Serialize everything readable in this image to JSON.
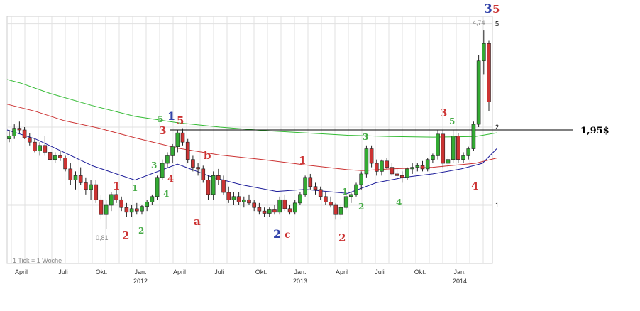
{
  "chart_data": {
    "type": "candlestick",
    "footnote": "1 Tick = 1 Woche",
    "x_ticks": [
      "April",
      "Juli",
      "Okt.",
      "Jan.",
      "April",
      "Juli",
      "Okt.",
      "Jan.",
      "April",
      "Juli",
      "Okt.",
      "Jan."
    ],
    "year_labels": [
      "2012",
      "2013",
      "2014"
    ],
    "y_axis": {
      "scale": "log",
      "ticks": [
        "1",
        "2",
        "5"
      ]
    },
    "annotations": {
      "high": "4,74",
      "low": "0,81",
      "resistance_label": "1,95$",
      "resistance_value": 1.95
    },
    "wave_labels": [
      {
        "text": "1",
        "color": "#cc3333"
      },
      {
        "text": "2",
        "color": "#cc3333"
      },
      {
        "text": "1",
        "color": "#44aa44"
      },
      {
        "text": "2",
        "color": "#44aa44"
      },
      {
        "text": "3",
        "color": "#44aa44"
      },
      {
        "text": "4",
        "color": "#44aa44"
      },
      {
        "text": "5",
        "color": "#44aa44"
      },
      {
        "text": "3",
        "color": "#cc3333"
      },
      {
        "text": "4",
        "color": "#cc3333"
      },
      {
        "text": "1",
        "color": "#3344aa"
      },
      {
        "text": "5",
        "color": "#cc3333"
      },
      {
        "text": "a",
        "color": "#cc3333"
      },
      {
        "text": "b",
        "color": "#cc3333"
      },
      {
        "text": "2",
        "color": "#3344aa"
      },
      {
        "text": "c",
        "color": "#cc3333"
      },
      {
        "text": "1",
        "color": "#cc3333"
      },
      {
        "text": "2",
        "color": "#cc3333"
      },
      {
        "text": "1",
        "color": "#44aa44"
      },
      {
        "text": "2",
        "color": "#44aa44"
      },
      {
        "text": "3",
        "color": "#44aa44"
      },
      {
        "text": "4",
        "color": "#44aa44"
      },
      {
        "text": "5",
        "color": "#44aa44"
      },
      {
        "text": "3",
        "color": "#cc3333"
      },
      {
        "text": "4",
        "color": "#cc3333"
      },
      {
        "text": "3",
        "color": "#3344aa"
      },
      {
        "text": "5",
        "color": "#cc3333"
      }
    ],
    "series": [
      {
        "kind": "moving-average",
        "color": "#33bb33",
        "values": [
          [
            0,
            3.05
          ],
          [
            20,
            2.95
          ],
          [
            60,
            2.7
          ],
          [
            120,
            2.42
          ],
          [
            180,
            2.2
          ],
          [
            240,
            2.08
          ],
          [
            300,
            2.0
          ],
          [
            360,
            1.94
          ],
          [
            420,
            1.9
          ],
          [
            480,
            1.86
          ],
          [
            540,
            1.84
          ],
          [
            600,
            1.83
          ],
          [
            660,
            1.84
          ],
          [
            690,
            1.9
          ]
        ]
      },
      {
        "kind": "moving-average",
        "color": "#cc3333",
        "values": [
          [
            0,
            2.45
          ],
          [
            40,
            2.3
          ],
          [
            80,
            2.12
          ],
          [
            130,
            1.98
          ],
          [
            180,
            1.82
          ],
          [
            240,
            1.66
          ],
          [
            300,
            1.56
          ],
          [
            360,
            1.5
          ],
          [
            420,
            1.43
          ],
          [
            480,
            1.37
          ],
          [
            500,
            1.36
          ],
          [
            540,
            1.38
          ],
          [
            600,
            1.4
          ],
          [
            660,
            1.45
          ],
          [
            690,
            1.52
          ]
        ]
      },
      {
        "kind": "moving-average",
        "color": "#1c1c99",
        "values": [
          [
            0,
            1.95
          ],
          [
            40,
            1.8
          ],
          [
            80,
            1.6
          ],
          [
            120,
            1.42
          ],
          [
            180,
            1.25
          ],
          [
            240,
            1.44
          ],
          [
            290,
            1.28
          ],
          [
            330,
            1.2
          ],
          [
            380,
            1.13
          ],
          [
            420,
            1.15
          ],
          [
            480,
            1.11
          ],
          [
            520,
            1.22
          ],
          [
            560,
            1.28
          ],
          [
            600,
            1.32
          ],
          [
            640,
            1.38
          ],
          [
            670,
            1.45
          ],
          [
            690,
            1.65
          ]
        ]
      }
    ],
    "candles": [
      [
        1.8,
        1.95,
        1.75,
        1.85
      ],
      [
        1.85,
        2.05,
        1.8,
        1.98
      ],
      [
        1.98,
        2.1,
        1.9,
        1.95
      ],
      [
        1.95,
        2.0,
        1.8,
        1.82
      ],
      [
        1.82,
        1.9,
        1.7,
        1.75
      ],
      [
        1.75,
        1.8,
        1.6,
        1.62
      ],
      [
        1.62,
        1.75,
        1.55,
        1.7
      ],
      [
        1.7,
        1.85,
        1.55,
        1.6
      ],
      [
        1.6,
        1.62,
        1.48,
        1.5
      ],
      [
        1.5,
        1.6,
        1.45,
        1.55
      ],
      [
        1.55,
        1.62,
        1.48,
        1.52
      ],
      [
        1.52,
        1.55,
        1.35,
        1.38
      ],
      [
        1.38,
        1.45,
        1.2,
        1.25
      ],
      [
        1.25,
        1.35,
        1.15,
        1.3
      ],
      [
        1.3,
        1.4,
        1.2,
        1.22
      ],
      [
        1.22,
        1.28,
        1.1,
        1.15
      ],
      [
        1.15,
        1.25,
        1.05,
        1.2
      ],
      [
        1.2,
        1.25,
        1.02,
        1.05
      ],
      [
        1.05,
        1.1,
        0.88,
        0.92
      ],
      [
        0.92,
        1.05,
        0.81,
        1.0
      ],
      [
        1.0,
        1.12,
        0.95,
        1.1
      ],
      [
        1.1,
        1.15,
        1.02,
        1.05
      ],
      [
        1.05,
        1.08,
        0.95,
        0.98
      ],
      [
        0.98,
        1.02,
        0.9,
        0.94
      ],
      [
        0.94,
        1.0,
        0.9,
        0.97
      ],
      [
        0.97,
        1.02,
        0.92,
        0.95
      ],
      [
        0.95,
        1.0,
        0.92,
        0.99
      ],
      [
        0.99,
        1.05,
        0.95,
        1.03
      ],
      [
        1.03,
        1.1,
        1.0,
        1.08
      ],
      [
        1.08,
        1.3,
        1.05,
        1.28
      ],
      [
        1.28,
        1.5,
        1.25,
        1.45
      ],
      [
        1.45,
        1.6,
        1.4,
        1.55
      ],
      [
        1.55,
        1.72,
        1.45,
        1.68
      ],
      [
        1.68,
        1.95,
        1.6,
        1.9
      ],
      [
        1.9,
        1.98,
        1.7,
        1.75
      ],
      [
        1.75,
        1.8,
        1.45,
        1.5
      ],
      [
        1.5,
        1.55,
        1.35,
        1.4
      ],
      [
        1.4,
        1.45,
        1.3,
        1.38
      ],
      [
        1.38,
        1.42,
        1.22,
        1.25
      ],
      [
        1.25,
        1.3,
        1.05,
        1.1
      ],
      [
        1.1,
        1.35,
        1.05,
        1.3
      ],
      [
        1.3,
        1.38,
        1.2,
        1.25
      ],
      [
        1.25,
        1.3,
        1.1,
        1.12
      ],
      [
        1.12,
        1.18,
        1.02,
        1.05
      ],
      [
        1.05,
        1.12,
        1.0,
        1.08
      ],
      [
        1.08,
        1.12,
        1.0,
        1.03
      ],
      [
        1.03,
        1.08,
        0.98,
        1.05
      ],
      [
        1.05,
        1.1,
        1.0,
        1.02
      ],
      [
        1.02,
        1.05,
        0.95,
        0.98
      ],
      [
        0.98,
        1.02,
        0.92,
        0.95
      ],
      [
        0.95,
        0.98,
        0.9,
        0.93
      ],
      [
        0.93,
        0.98,
        0.9,
        0.96
      ],
      [
        0.96,
        1.0,
        0.92,
        0.94
      ],
      [
        0.94,
        1.08,
        0.92,
        1.05
      ],
      [
        1.05,
        1.1,
        0.95,
        0.97
      ],
      [
        0.97,
        1.0,
        0.92,
        0.94
      ],
      [
        0.94,
        1.05,
        0.92,
        1.02
      ],
      [
        1.02,
        1.12,
        1.0,
        1.1
      ],
      [
        1.1,
        1.3,
        1.08,
        1.28
      ],
      [
        1.28,
        1.32,
        1.15,
        1.18
      ],
      [
        1.18,
        1.22,
        1.1,
        1.15
      ],
      [
        1.15,
        1.18,
        1.05,
        1.08
      ],
      [
        1.08,
        1.12,
        1.0,
        1.03
      ],
      [
        1.03,
        1.08,
        0.98,
        1.0
      ],
      [
        1.0,
        1.02,
        0.88,
        0.92
      ],
      [
        0.92,
        1.0,
        0.88,
        0.98
      ],
      [
        0.98,
        1.1,
        0.96,
        1.08
      ],
      [
        1.08,
        1.12,
        1.02,
        1.1
      ],
      [
        1.1,
        1.22,
        1.08,
        1.2
      ],
      [
        1.2,
        1.35,
        1.15,
        1.32
      ],
      [
        1.32,
        1.7,
        1.28,
        1.65
      ],
      [
        1.65,
        1.7,
        1.4,
        1.45
      ],
      [
        1.45,
        1.5,
        1.3,
        1.35
      ],
      [
        1.35,
        1.5,
        1.3,
        1.48
      ],
      [
        1.48,
        1.52,
        1.38,
        1.4
      ],
      [
        1.4,
        1.45,
        1.3,
        1.32
      ],
      [
        1.32,
        1.38,
        1.25,
        1.3
      ],
      [
        1.3,
        1.35,
        1.22,
        1.28
      ],
      [
        1.28,
        1.4,
        1.25,
        1.38
      ],
      [
        1.38,
        1.45,
        1.32,
        1.4
      ],
      [
        1.4,
        1.45,
        1.35,
        1.42
      ],
      [
        1.42,
        1.48,
        1.35,
        1.38
      ],
      [
        1.38,
        1.52,
        1.35,
        1.5
      ],
      [
        1.5,
        1.58,
        1.45,
        1.55
      ],
      [
        1.55,
        1.95,
        1.5,
        1.88
      ],
      [
        1.88,
        1.95,
        1.4,
        1.45
      ],
      [
        1.45,
        1.55,
        1.38,
        1.5
      ],
      [
        1.5,
        1.95,
        1.45,
        1.85
      ],
      [
        1.85,
        1.9,
        1.45,
        1.5
      ],
      [
        1.5,
        1.6,
        1.45,
        1.55
      ],
      [
        1.55,
        1.68,
        1.5,
        1.65
      ],
      [
        1.65,
        2.1,
        1.62,
        2.05
      ],
      [
        2.05,
        3.8,
        2.0,
        3.6
      ],
      [
        3.6,
        4.74,
        3.2,
        4.2
      ],
      [
        4.2,
        4.3,
        2.3,
        2.5
      ]
    ]
  }
}
